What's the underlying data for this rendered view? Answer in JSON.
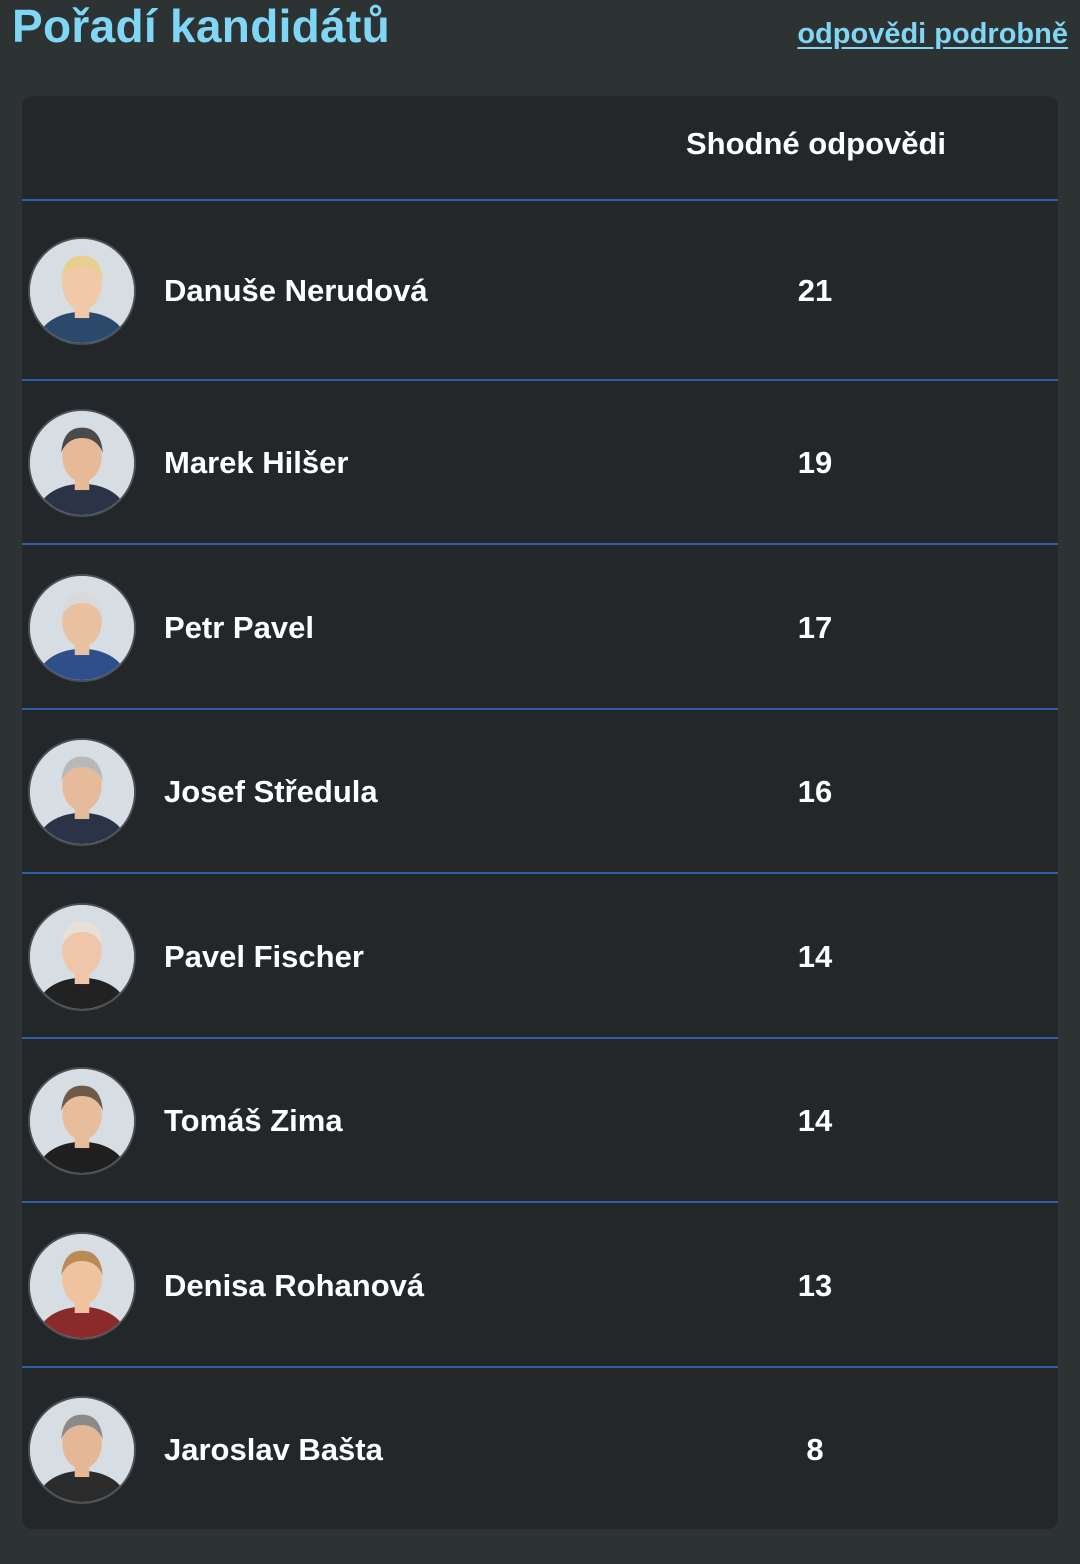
{
  "header": {
    "title": "Pořadí kandidátů",
    "details_link": "odpovědi podrobně"
  },
  "table": {
    "column_header": "Shodné odpovědi",
    "rows": [
      {
        "name": "Danuše Nerudová",
        "score": "21",
        "avatar_icon": "candidate-photo"
      },
      {
        "name": "Marek Hilšer",
        "score": "19",
        "avatar_icon": "candidate-photo"
      },
      {
        "name": "Petr Pavel",
        "score": "17",
        "avatar_icon": "candidate-photo"
      },
      {
        "name": "Josef Středula",
        "score": "16",
        "avatar_icon": "candidate-photo"
      },
      {
        "name": "Pavel Fischer",
        "score": "14",
        "avatar_icon": "candidate-photo"
      },
      {
        "name": "Tomáš Zima",
        "score": "14",
        "avatar_icon": "candidate-photo"
      },
      {
        "name": "Denisa Rohanová",
        "score": "13",
        "avatar_icon": "candidate-photo"
      },
      {
        "name": "Jaroslav Bašta",
        "score": "8",
        "avatar_icon": "candidate-photo"
      }
    ]
  },
  "colors": {
    "accent": "#7fd6f5",
    "divider": "#2f5fa8",
    "card_bg": "#23272a",
    "page_bg": "#2d3233"
  }
}
